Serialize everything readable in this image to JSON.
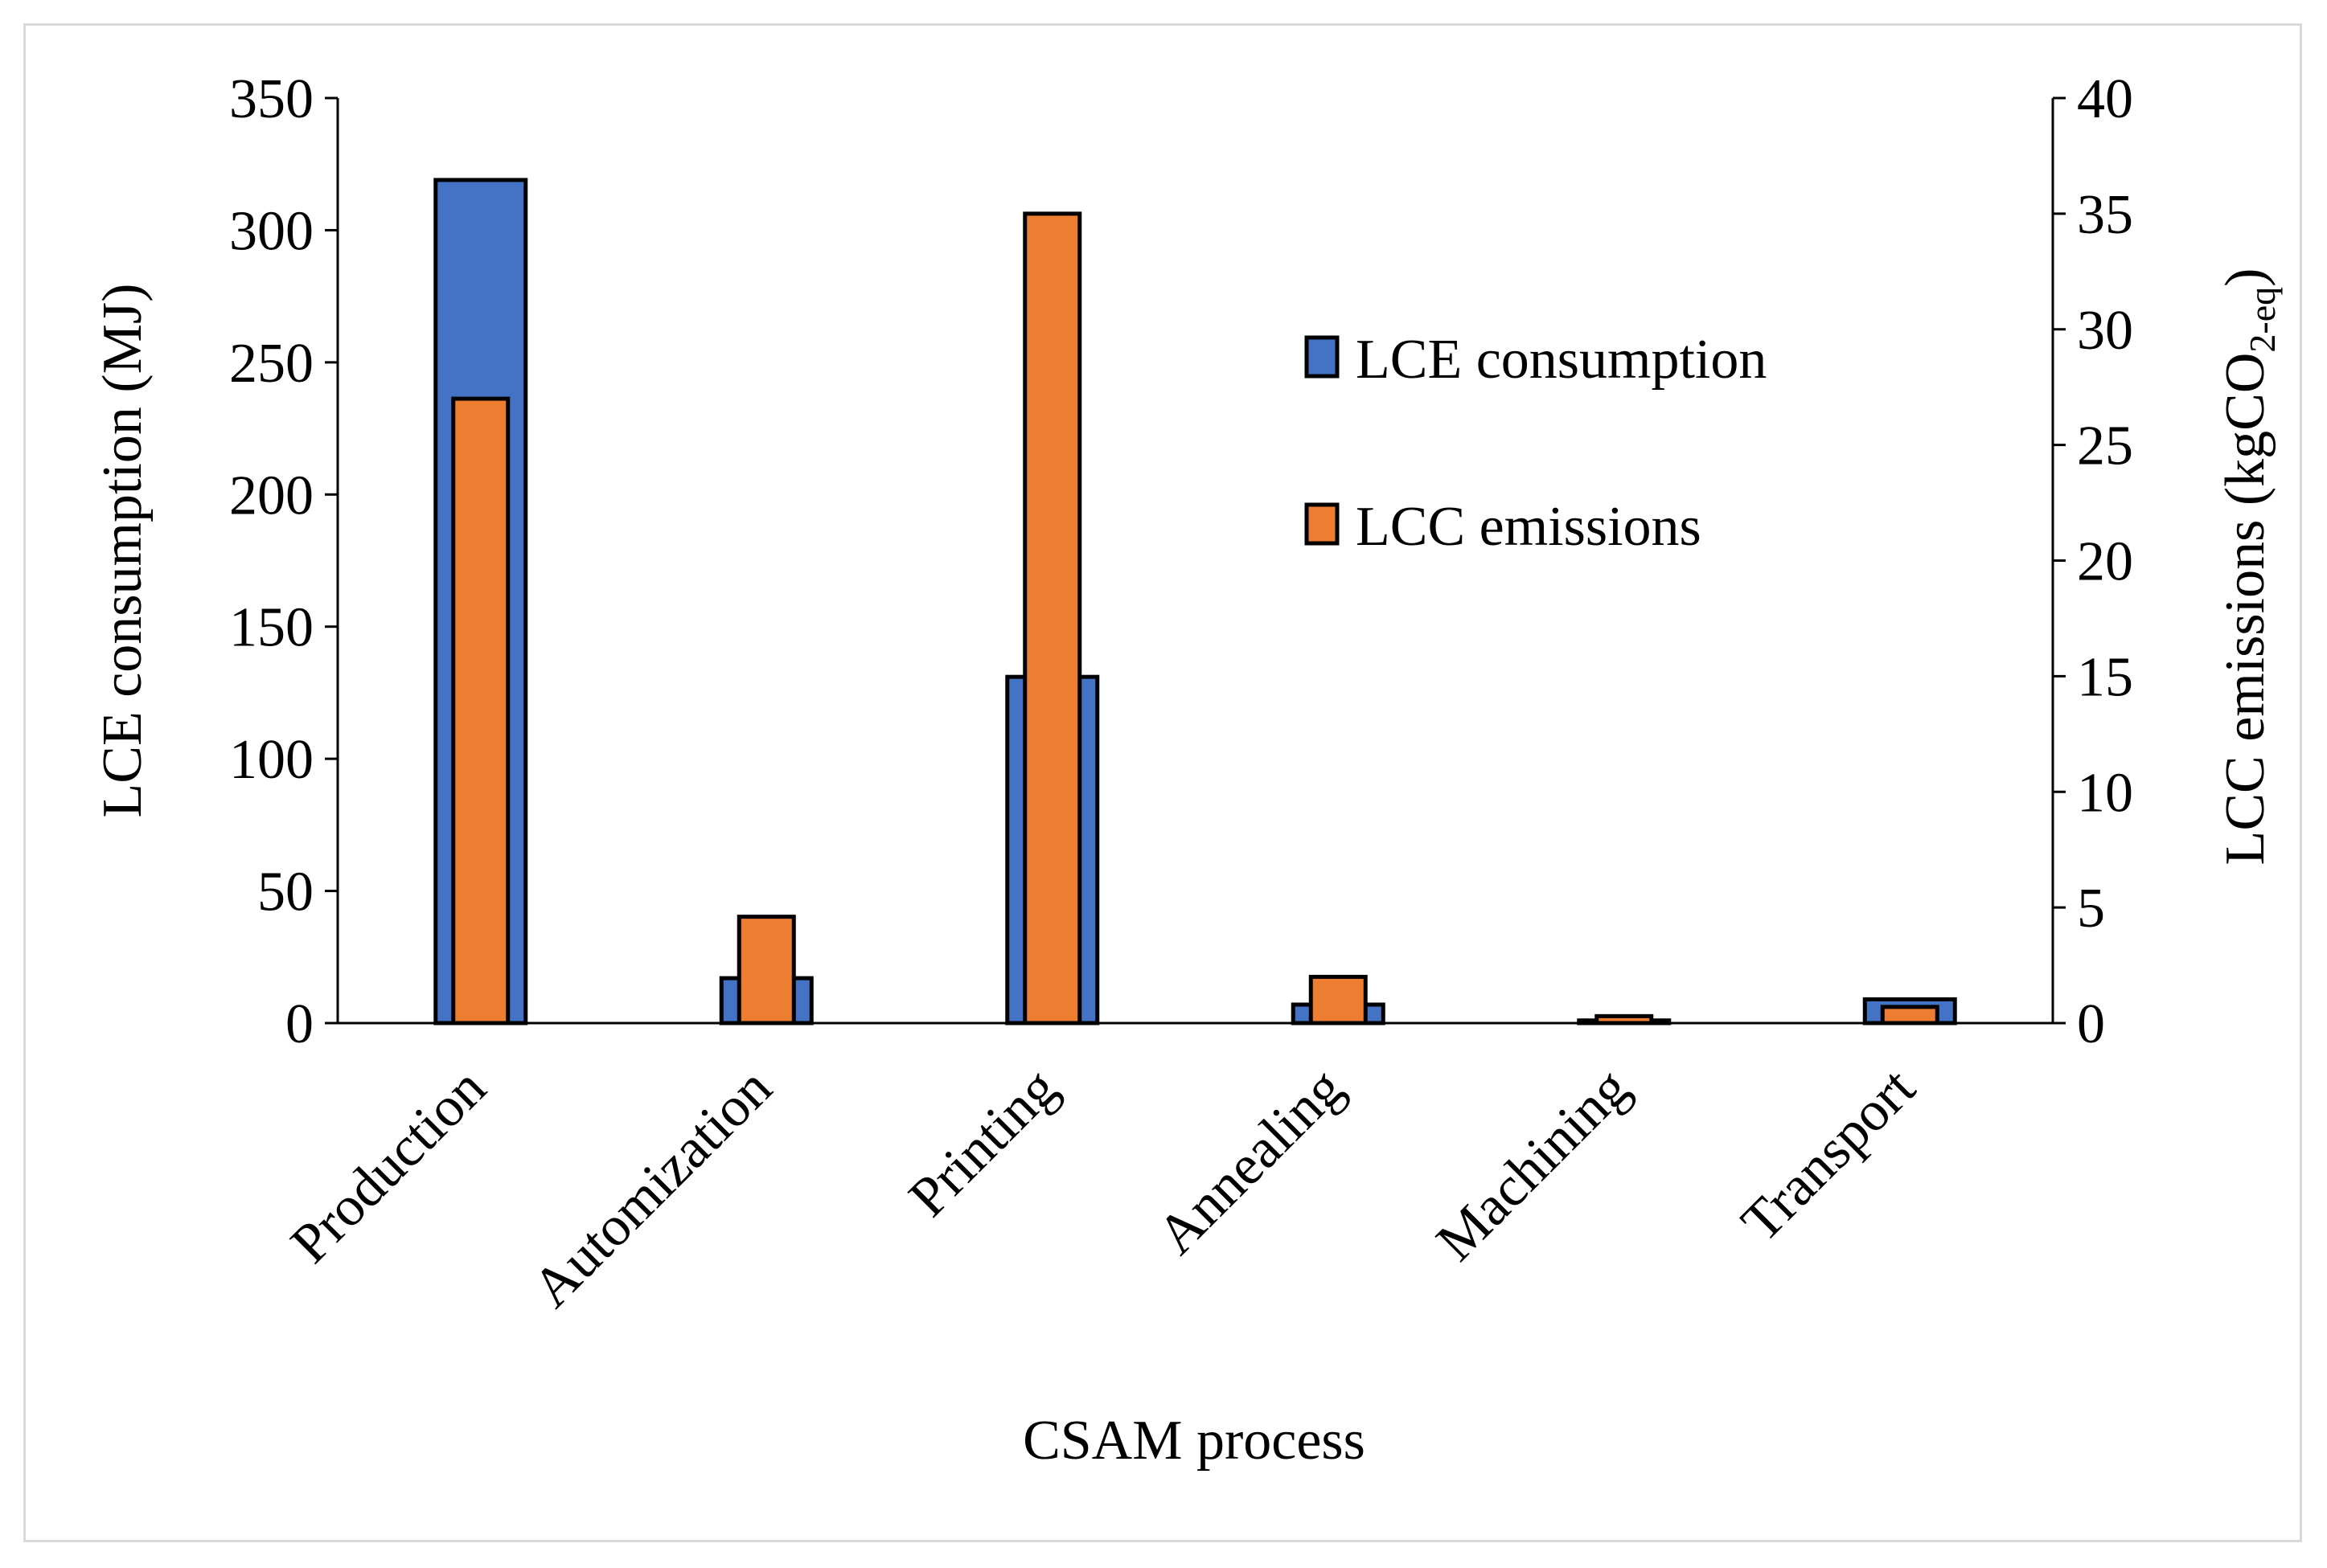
{
  "chart_data": {
    "type": "bar",
    "categories": [
      "Production",
      "Automization",
      "Printing",
      "Annealing",
      "Machining",
      "Transport"
    ],
    "series": [
      {
        "name": "LCE consumption",
        "axis": "left",
        "color": "#4472c4",
        "values": [
          319,
          17,
          131,
          7,
          1,
          9
        ]
      },
      {
        "name": "LCC emissions",
        "axis": "right",
        "color": "#ed7d31",
        "values": [
          27,
          4.6,
          35,
          2.0,
          0.3,
          0.7
        ]
      }
    ],
    "xlabel": "CSAM process",
    "ylabel_left": "LCE consumption (MJ)",
    "ylabel_right_main": "LCC emissions (kgCO",
    "ylabel_right_sub": "2-eq",
    "ylabel_right_close": ")",
    "ylim_left": [
      0,
      350
    ],
    "ylim_right": [
      0,
      40
    ],
    "yticks_left": [
      "0",
      "50",
      "100",
      "150",
      "200",
      "250",
      "300",
      "350"
    ],
    "yticks_right": [
      "0",
      "5",
      "10",
      "15",
      "20",
      "25",
      "30",
      "35",
      "40"
    ],
    "grid": false,
    "legend_position": "upper-right-inside"
  }
}
